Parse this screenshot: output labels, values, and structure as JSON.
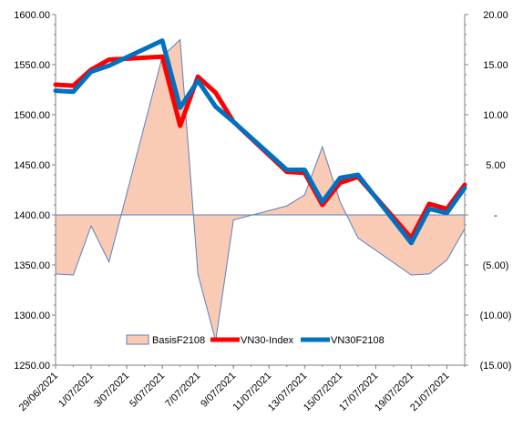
{
  "chart_data": {
    "type": "combo",
    "title": "",
    "xlabel": "",
    "ylabel": "",
    "y_left_lim": [
      1250,
      1600
    ],
    "y_right_lim": [
      -15,
      20
    ],
    "y_left_ticks": [
      "1250.00",
      "1300.00",
      "1350.00",
      "1400.00",
      "1450.00",
      "1500.00",
      "1550.00",
      "1600.00"
    ],
    "y_right_ticks": [
      "(15.00)",
      "(10.00)",
      "(5.00)",
      "-",
      "5.00",
      "10.00",
      "15.00",
      "20.00"
    ],
    "x_tick_labels": [
      "29/06/2021",
      "1/07/2021",
      "3/07/2021",
      "5/07/2021",
      "7/07/2021",
      "9/07/2021",
      "11/07/2021",
      "13/07/2021",
      "15/07/2021",
      "17/07/2021",
      "19/07/2021",
      "21/07/2021"
    ],
    "x_start": "29/06/2021",
    "x_end": "22/07/2021",
    "legend_position": "bottom-center",
    "series": [
      {
        "name": "BasisF2108",
        "type": "area",
        "axis": "right",
        "color": "#f9cbb4",
        "stroke": "#5b7fbf",
        "dates": [
          "29/06/2021",
          "30/06/2021",
          "01/07/2021",
          "02/07/2021",
          "05/07/2021",
          "06/07/2021",
          "07/07/2021",
          "08/07/2021",
          "09/07/2021",
          "12/07/2021",
          "13/07/2021",
          "14/07/2021",
          "15/07/2021",
          "16/07/2021",
          "19/07/2021",
          "20/07/2021",
          "21/07/2021",
          "22/07/2021"
        ],
        "values": [
          -5.9,
          -6.0,
          -1.1,
          -4.7,
          15.8,
          17.5,
          -5.9,
          -12.6,
          -0.5,
          0.9,
          2.0,
          6.8,
          1.3,
          -2.3,
          -6.0,
          -5.9,
          -4.5,
          -1.4
        ]
      },
      {
        "name": "VN30-Index",
        "type": "line",
        "axis": "left",
        "color": "#ff0000",
        "dates": [
          "29/06/2021",
          "30/06/2021",
          "01/07/2021",
          "02/07/2021",
          "05/07/2021",
          "06/07/2021",
          "07/07/2021",
          "08/07/2021",
          "09/07/2021",
          "12/07/2021",
          "13/07/2021",
          "14/07/2021",
          "15/07/2021",
          "16/07/2021",
          "19/07/2021",
          "20/07/2021",
          "21/07/2021",
          "22/07/2021"
        ],
        "values": [
          1530,
          1529,
          1545,
          1555,
          1558,
          1489,
          1538,
          1522,
          1493,
          1443,
          1442,
          1410,
          1432,
          1438,
          1377,
          1411,
          1406,
          1430
        ]
      },
      {
        "name": "VN30F2108",
        "type": "line",
        "axis": "left",
        "color": "#0070c0",
        "dates": [
          "29/06/2021",
          "30/06/2021",
          "01/07/2021",
          "02/07/2021",
          "05/07/2021",
          "06/07/2021",
          "07/07/2021",
          "08/07/2021",
          "09/07/2021",
          "12/07/2021",
          "13/07/2021",
          "14/07/2021",
          "15/07/2021",
          "16/07/2021",
          "19/07/2021",
          "20/07/2021",
          "21/07/2021",
          "22/07/2021"
        ],
        "values": [
          1524,
          1523,
          1543,
          1549,
          1574,
          1507,
          1534,
          1508,
          1493,
          1445,
          1445,
          1413,
          1437,
          1440,
          1372,
          1406,
          1402,
          1427
        ]
      }
    ]
  }
}
